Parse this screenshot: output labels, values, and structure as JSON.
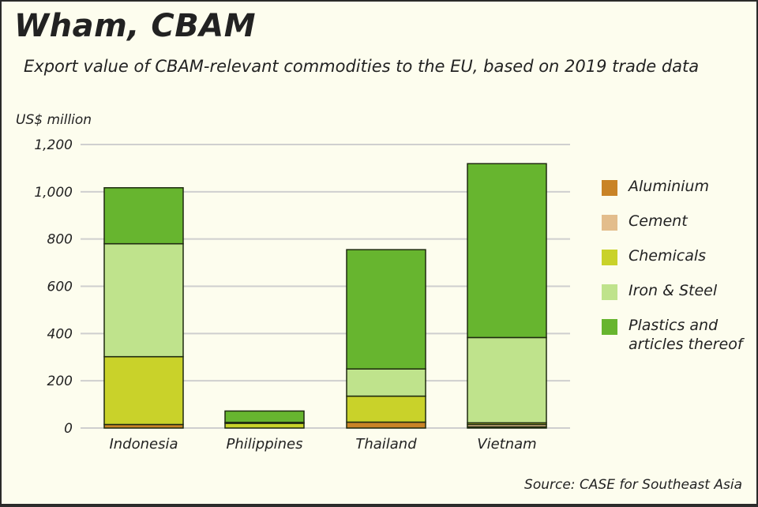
{
  "header": {
    "title": "Wham, CBAM",
    "subtitle": "Export value of CBAM-relevant commodities to the EU, based on 2019 trade data"
  },
  "axis": {
    "ylabel": "US$ million",
    "ticks": [
      "0",
      "200",
      "400",
      "600",
      "800",
      "1,000",
      "1,200"
    ]
  },
  "footer": {
    "source": "Source: CASE for Southeast Asia"
  },
  "legend": {
    "items": [
      {
        "label": "Aluminium",
        "color": "#c98327"
      },
      {
        "label": "Cement",
        "color": "#e3bd8c"
      },
      {
        "label": "Chemicals",
        "color": "#c9d22a"
      },
      {
        "label": "Iron & Steel",
        "color": "#bfe38c"
      },
      {
        "label": "Plastics and articles thereof",
        "color": "#67b52f"
      }
    ]
  },
  "chart_data": {
    "type": "bar",
    "stacked": true,
    "title": "Wham, CBAM",
    "subtitle": "Export value of CBAM-relevant commodities to the EU, based on 2019 trade data",
    "xlabel": "",
    "ylabel": "US$ million",
    "ylim": [
      0,
      1200
    ],
    "yticks": [
      0,
      200,
      400,
      600,
      800,
      1000,
      1200
    ],
    "grid": true,
    "legend_position": "right",
    "categories": [
      "Indonesia",
      "Philippines",
      "Thailand",
      "Vietnam"
    ],
    "series": [
      {
        "name": "Aluminium",
        "color": "#c98327",
        "values": [
          15,
          0,
          25,
          5
        ]
      },
      {
        "name": "Cement",
        "color": "#e3bd8c",
        "values": [
          0,
          0,
          0,
          10
        ]
      },
      {
        "name": "Chemicals",
        "color": "#c9d22a",
        "values": [
          287,
          20,
          110,
          7
        ]
      },
      {
        "name": "Iron & Steel",
        "color": "#bfe38c",
        "values": [
          478,
          4,
          115,
          361
        ]
      },
      {
        "name": "Plastics and articles thereof",
        "color": "#67b52f",
        "values": [
          237,
          48,
          505,
          736
        ]
      }
    ],
    "totals": [
      1017,
      72,
      755,
      1119
    ],
    "source": "Source: CASE for Southeast Asia"
  }
}
